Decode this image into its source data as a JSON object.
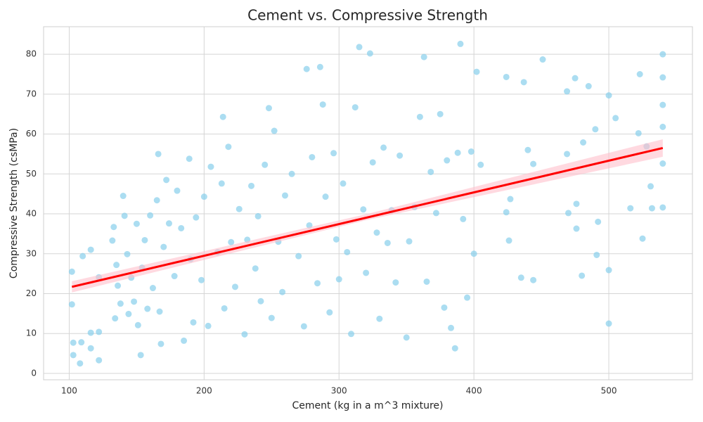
{
  "chart_data": {
    "type": "scatter",
    "title": "Cement vs. Compressive Strength",
    "xlabel": "Cement (kg in a m^3 mixture)",
    "ylabel": "Compressive Strength (csMPa)",
    "xlim": [
      81,
      562
    ],
    "ylim": [
      -1.6,
      86.9
    ],
    "xticks": [
      100,
      200,
      300,
      400,
      500
    ],
    "yticks": [
      0,
      10,
      20,
      30,
      40,
      50,
      60,
      70,
      80
    ],
    "grid": true,
    "points": {
      "color": "#87ceeb",
      "x": [
        102,
        102,
        103,
        103,
        108,
        109,
        110,
        116,
        116,
        116,
        122,
        122,
        122,
        132,
        133,
        134,
        135,
        136,
        138,
        140,
        141,
        143,
        144,
        146,
        148,
        150,
        151,
        153,
        154,
        156,
        158,
        160,
        162,
        165,
        166,
        167,
        168,
        170,
        172,
        174,
        178,
        180,
        183,
        185,
        189,
        190,
        192,
        194,
        198,
        200,
        203,
        205,
        210,
        213,
        214,
        215,
        218,
        220,
        223,
        226,
        230,
        232,
        235,
        238,
        240,
        242,
        245,
        248,
        250,
        252,
        255,
        258,
        260,
        265,
        270,
        274,
        276,
        278,
        280,
        284,
        286,
        288,
        290,
        293,
        296,
        298,
        300,
        303,
        306,
        309,
        312,
        315,
        318,
        320,
        323,
        325,
        328,
        330,
        333,
        336,
        339,
        342,
        345,
        350,
        352,
        356,
        360,
        363,
        365,
        368,
        372,
        375,
        378,
        380,
        383,
        386,
        388,
        390,
        392,
        395,
        398,
        400,
        402,
        405,
        424,
        424,
        426,
        427,
        435,
        437,
        440,
        444,
        444,
        451,
        469,
        469,
        470,
        475,
        476,
        476,
        480,
        481,
        485,
        490,
        491,
        492,
        500,
        500,
        500,
        505,
        516,
        522,
        523,
        525,
        528,
        531,
        532,
        540,
        540,
        540,
        540,
        540,
        540
      ],
      "y": [
        25.5,
        17.3,
        7.7,
        4.6,
        2.5,
        7.8,
        29.4,
        31,
        10.2,
        6.3,
        24.1,
        10.4,
        3.3,
        33.3,
        36.7,
        13.8,
        27.2,
        22,
        17.5,
        44.5,
        39.5,
        29.9,
        14.9,
        24,
        18,
        37.5,
        12.1,
        4.6,
        26.5,
        33.4,
        16.2,
        39.6,
        21.4,
        43.4,
        55,
        15.5,
        7.4,
        31.7,
        48.5,
        37.6,
        24.4,
        45.8,
        36.4,
        8.2,
        53.8,
        28.6,
        12.8,
        39.1,
        23.4,
        44.3,
        11.9,
        51.8,
        30.4,
        47.6,
        64.3,
        16.3,
        56.8,
        32.9,
        21.7,
        41.2,
        9.8,
        33.5,
        47,
        26.3,
        39.4,
        18.1,
        52.3,
        66.5,
        13.9,
        60.8,
        33,
        20.4,
        44.6,
        50,
        29.4,
        11.8,
        76.3,
        37.1,
        54.2,
        22.6,
        76.8,
        67.4,
        44.3,
        15.3,
        55.2,
        33.6,
        23.6,
        47.6,
        30.4,
        9.9,
        66.7,
        81.8,
        41.1,
        25.2,
        80.2,
        52.9,
        35.3,
        13.7,
        56.6,
        32.7,
        40.9,
        22.8,
        54.6,
        9,
        33.1,
        41.7,
        64.3,
        79.3,
        23,
        50.5,
        40.2,
        65,
        16.5,
        53.4,
        11.4,
        6.3,
        55.3,
        82.6,
        38.7,
        19,
        55.6,
        30,
        75.6,
        52.3,
        74.3,
        40.4,
        33.3,
        43.7,
        24,
        73,
        56,
        52.5,
        23.4,
        78.7,
        70.7,
        55,
        40.2,
        74,
        42.5,
        36.3,
        24.5,
        57.9,
        72,
        61.2,
        29.7,
        38,
        69.7,
        25.9,
        12.5,
        64,
        41.4,
        60.2,
        75,
        33.8,
        56.9,
        46.9,
        41.4,
        80,
        74.2,
        67.3,
        61.8,
        52.6,
        41.6
      ]
    },
    "fit": {
      "color": "#ff0000",
      "x": [
        102,
        540
      ],
      "y": [
        21.7,
        56.5
      ]
    },
    "band": {
      "color": "#ffc0cb",
      "x": [
        102,
        320,
        540
      ],
      "lower": [
        20.3,
        38.4,
        54.3
      ],
      "upper": [
        23.1,
        39.9,
        58.7
      ]
    }
  }
}
